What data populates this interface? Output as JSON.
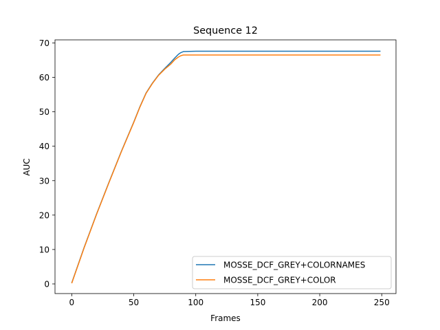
{
  "chart_data": {
    "type": "line",
    "title": "Sequence 12",
    "xlabel": "Frames",
    "ylabel": "AUC",
    "xlim": [
      -13.5,
      261.5
    ],
    "ylim": [
      -2.8,
      70.9
    ],
    "xticks": [
      0,
      50,
      100,
      150,
      200,
      250
    ],
    "yticks": [
      0,
      10,
      20,
      30,
      40,
      50,
      60,
      70
    ],
    "grid": false,
    "legend_position": "lower-right",
    "series": [
      {
        "name": "MOSSE_DCF_GREY+COLORNAMES",
        "color": "#1f77b4",
        "x": [
          0,
          10,
          20,
          30,
          40,
          50,
          55,
          60,
          65,
          70,
          75,
          80,
          83,
          86,
          88,
          90,
          100,
          150,
          200,
          249
        ],
        "y": [
          0.3,
          10.6,
          20.3,
          29.5,
          38.5,
          47.0,
          51.5,
          55.5,
          58.3,
          60.7,
          62.6,
          64.4,
          65.6,
          66.7,
          67.2,
          67.5,
          67.6,
          67.6,
          67.6,
          67.6
        ]
      },
      {
        "name": "MOSSE_DCF_GREY+COLOR",
        "color": "#ff7f0e",
        "x": [
          0,
          10,
          20,
          30,
          40,
          50,
          55,
          60,
          65,
          70,
          75,
          80,
          83,
          86,
          88,
          90,
          100,
          150,
          200,
          249
        ],
        "y": [
          0.2,
          10.5,
          20.2,
          29.4,
          38.4,
          46.9,
          51.4,
          55.4,
          58.2,
          60.6,
          62.4,
          63.9,
          65.1,
          65.9,
          66.3,
          66.5,
          66.5,
          66.5,
          66.5,
          66.5
        ]
      }
    ]
  }
}
